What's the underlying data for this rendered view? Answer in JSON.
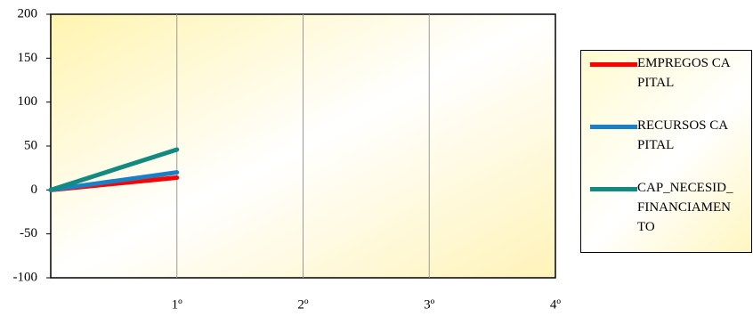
{
  "chart_data": {
    "type": "line",
    "categories": [
      null,
      "1º",
      "2º",
      "3º",
      "4º"
    ],
    "series": [
      {
        "name": "EMPREGOS CAPITAL",
        "color": "#ff0000",
        "values": [
          0,
          14,
          null,
          null,
          null
        ]
      },
      {
        "name": "RECURSOS CAPITAL",
        "color": "#1b7fc4",
        "values": [
          0,
          20,
          null,
          null,
          null
        ]
      },
      {
        "name": "CAP_NECESID_FINANCIAMENTO",
        "color": "#128a80",
        "values": [
          0,
          46,
          null,
          null,
          null
        ]
      }
    ],
    "ylim": [
      -100,
      200
    ],
    "yticks": [
      -100,
      -50,
      0,
      50,
      100,
      150,
      200
    ],
    "grid": true,
    "legend": "right"
  }
}
